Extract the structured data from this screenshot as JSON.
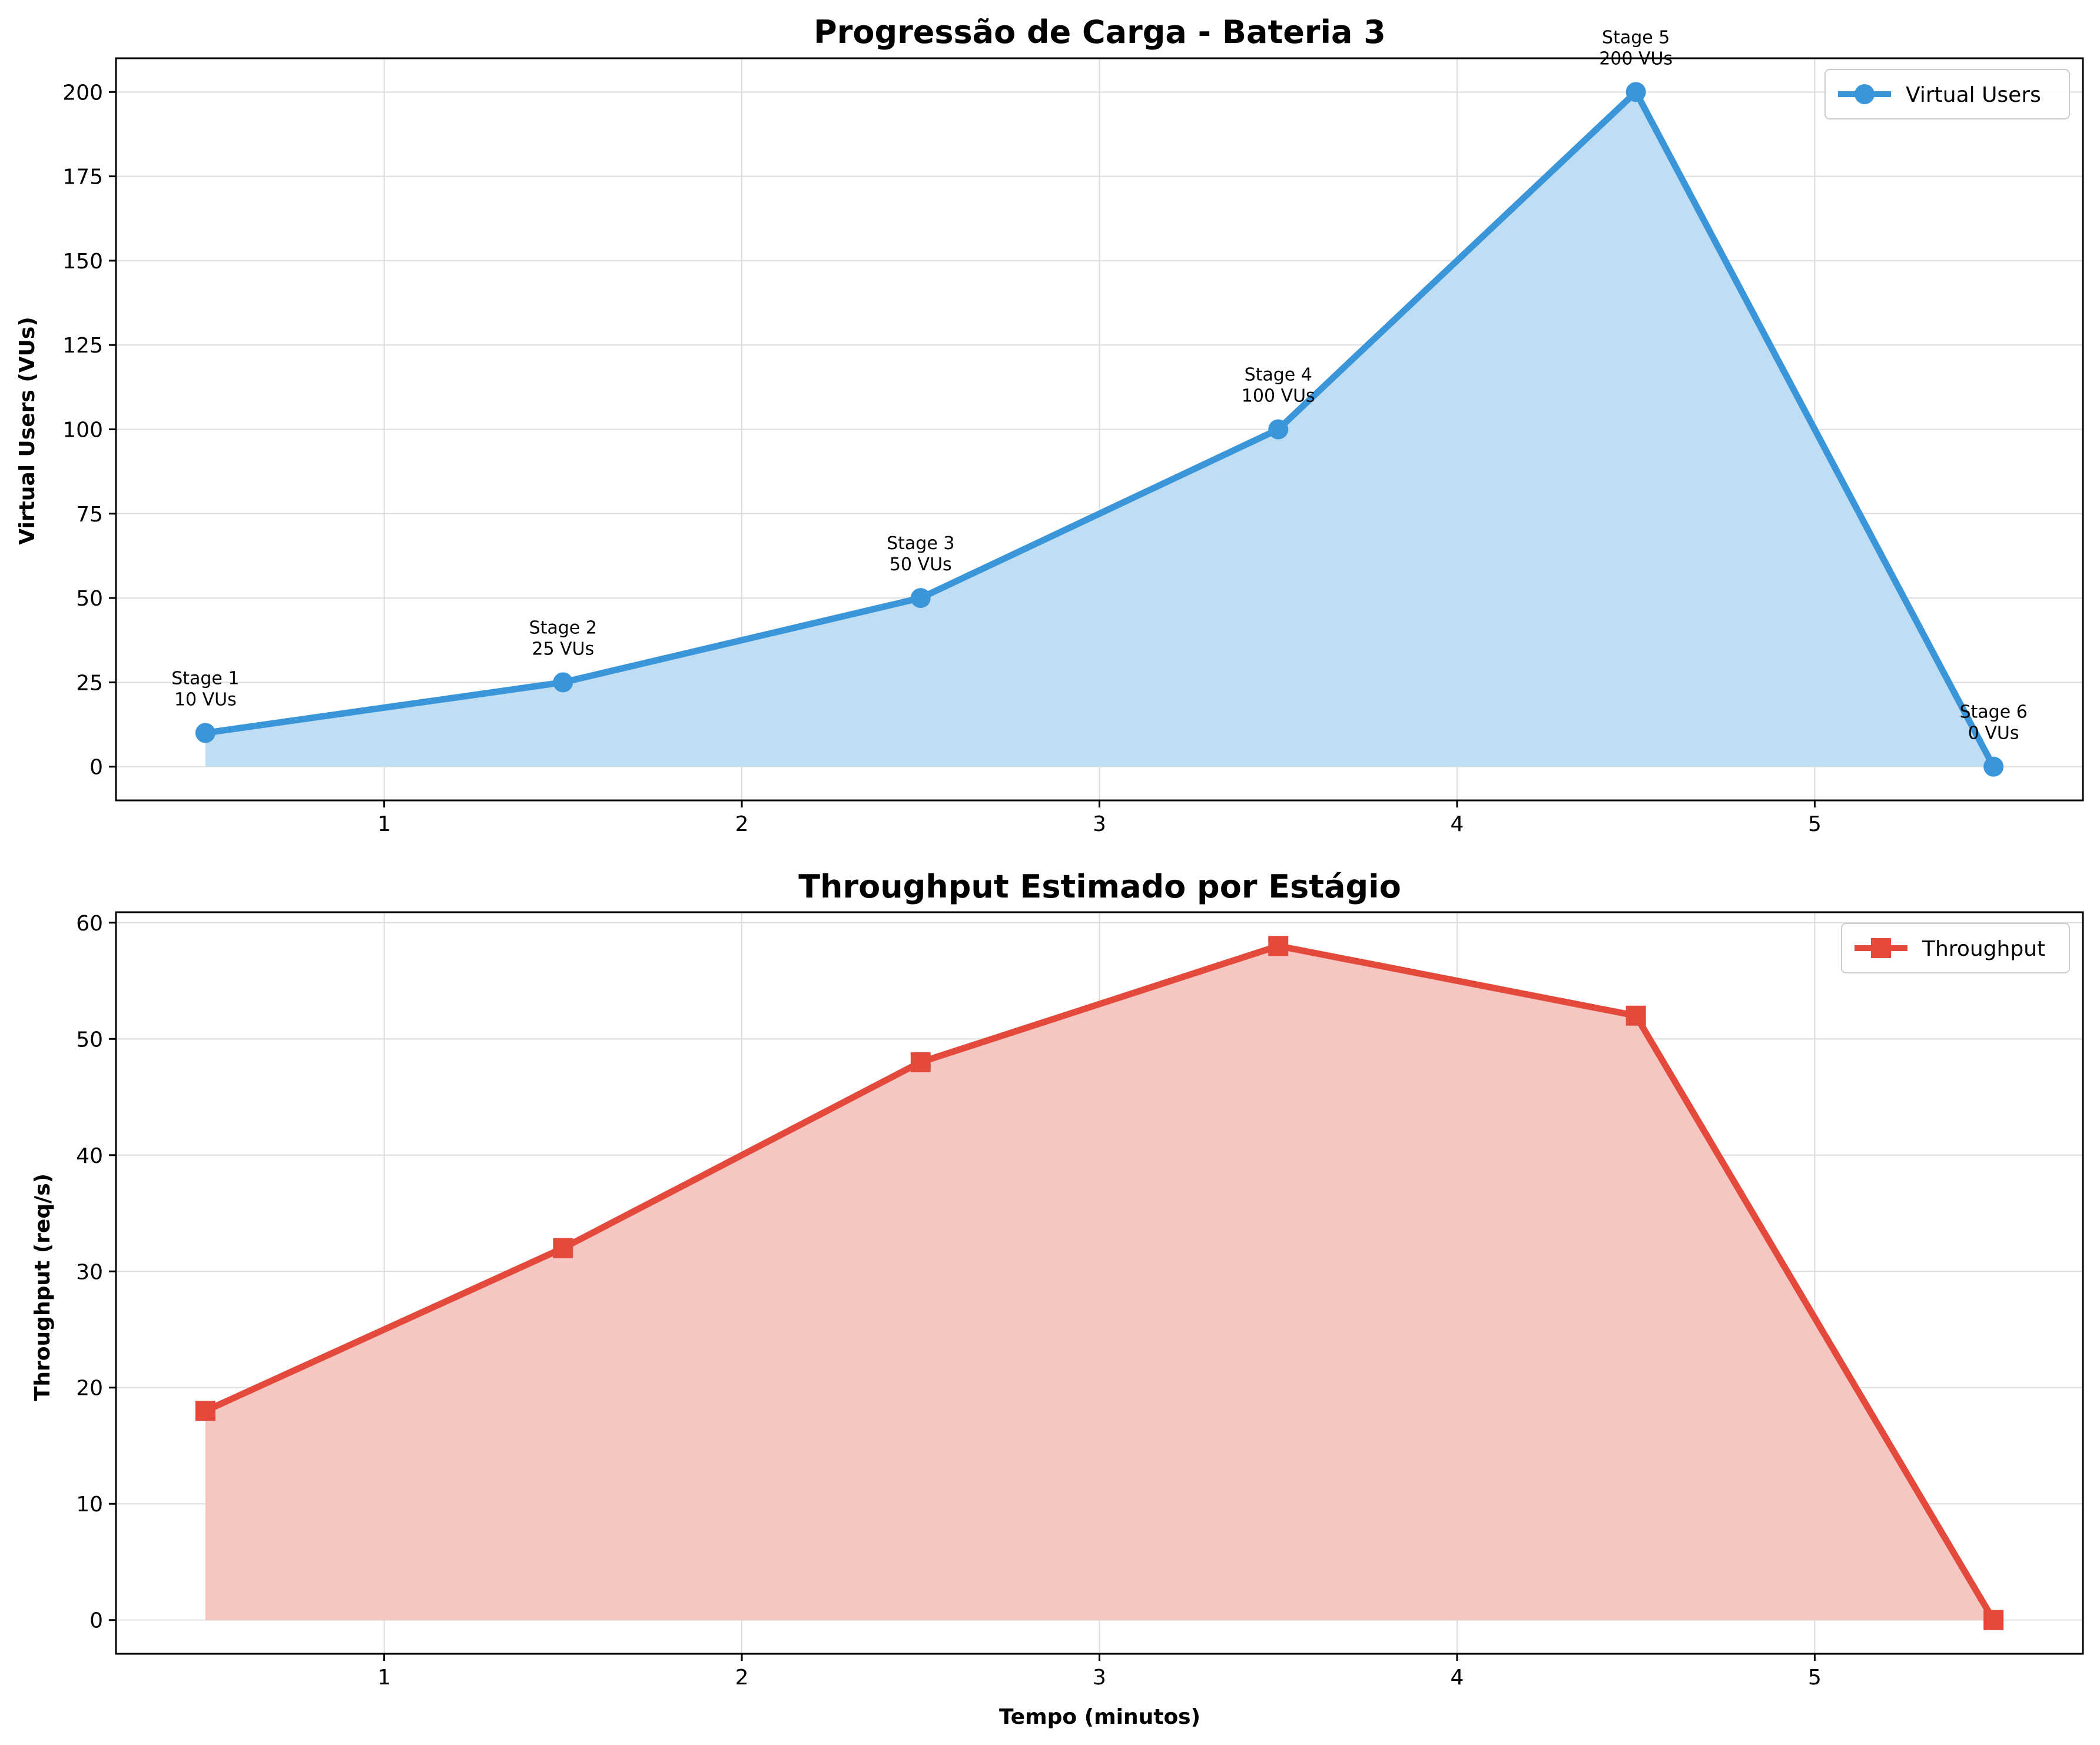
{
  "chart_data": [
    {
      "type": "area",
      "title": "Progressão de Carga - Bateria 3",
      "xlabel": "",
      "ylabel": "Virtual Users (VUs)",
      "xlim": [
        0.25,
        5.75
      ],
      "ylim": [
        -10,
        210
      ],
      "xticks": [
        1,
        2,
        3,
        4,
        5
      ],
      "yticks": [
        0,
        25,
        50,
        75,
        100,
        125,
        150,
        175,
        200
      ],
      "grid": true,
      "legend_position": "top-right",
      "marker": "circle",
      "color": "#3a96d9",
      "fill_color": "#bfdef3",
      "series": [
        {
          "name": "Virtual Users",
          "x": [
            0.5,
            1.5,
            2.5,
            3.5,
            4.5,
            5.5
          ],
          "y": [
            10,
            25,
            50,
            100,
            200,
            0
          ]
        }
      ],
      "annotations": [
        {
          "x": 0.5,
          "y": 10,
          "line1": "Stage 1",
          "line2": "10 VUs"
        },
        {
          "x": 1.5,
          "y": 25,
          "line1": "Stage 2",
          "line2": "25 VUs"
        },
        {
          "x": 2.5,
          "y": 50,
          "line1": "Stage 3",
          "line2": "50 VUs"
        },
        {
          "x": 3.5,
          "y": 100,
          "line1": "Stage 4",
          "line2": "100 VUs"
        },
        {
          "x": 4.5,
          "y": 200,
          "line1": "Stage 5",
          "line2": "200 VUs"
        },
        {
          "x": 5.5,
          "y": 0,
          "line1": "Stage 6",
          "line2": "0 VUs"
        }
      ]
    },
    {
      "type": "area",
      "title": "Throughput Estimado por Estágio",
      "xlabel": "Tempo (minutos)",
      "ylabel": "Throughput (req/s)",
      "xlim": [
        0.25,
        5.75
      ],
      "ylim": [
        -2.9,
        60.9
      ],
      "xticks": [
        1,
        2,
        3,
        4,
        5
      ],
      "yticks": [
        0,
        10,
        20,
        30,
        40,
        50,
        60
      ],
      "grid": true,
      "legend_position": "top-right",
      "marker": "square",
      "color": "#e34a3b",
      "fill_color": "#f5c6c2",
      "series": [
        {
          "name": "Throughput",
          "x": [
            0.5,
            1.5,
            2.5,
            3.5,
            4.5,
            5.5
          ],
          "y": [
            18,
            32,
            48,
            58,
            52,
            0
          ]
        }
      ],
      "annotations": []
    }
  ]
}
